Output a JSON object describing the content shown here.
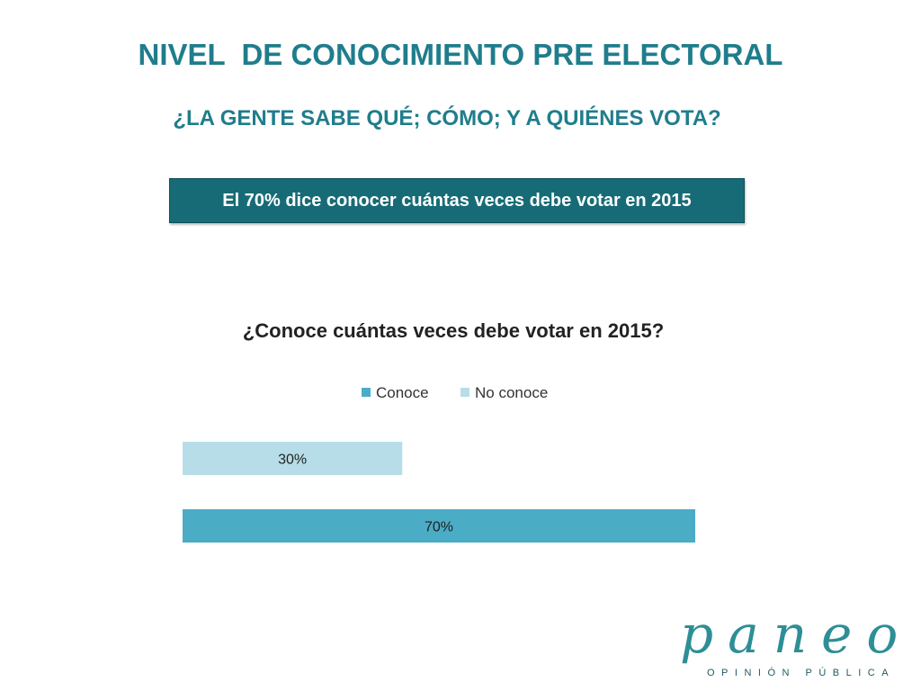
{
  "header": {
    "title": "NIVEL  DE CONOCIMIENTO PRE ELECTORAL",
    "subtitle": "¿LA GENTE SABE QUÉ; CÓMO; Y A QUIÉNES VOTA?",
    "highlight": "El 70% dice conocer cuántas veces debe votar en 2015"
  },
  "chart_data": {
    "type": "bar",
    "orientation": "horizontal",
    "title": "¿Conoce cuántas veces debe votar en 2015?",
    "legend_position": "top",
    "grid": false,
    "xlim": [
      0,
      100
    ],
    "categories": [
      "No conoce",
      "Conoce"
    ],
    "values": [
      30,
      70
    ],
    "data_labels": [
      "30%",
      "70%"
    ],
    "legend": [
      {
        "name": "Conoce",
        "color": "#4bacc6"
      },
      {
        "name": "No conoce",
        "color": "#b7dee8"
      }
    ],
    "colors": [
      "#b7dee8",
      "#4bacc6"
    ]
  },
  "logo": {
    "name": "paneo",
    "tagline": "OPINIÓN PÚBLICA"
  },
  "colors": {
    "title": "#1f7d8c",
    "highlight_bg": "#176b76"
  }
}
